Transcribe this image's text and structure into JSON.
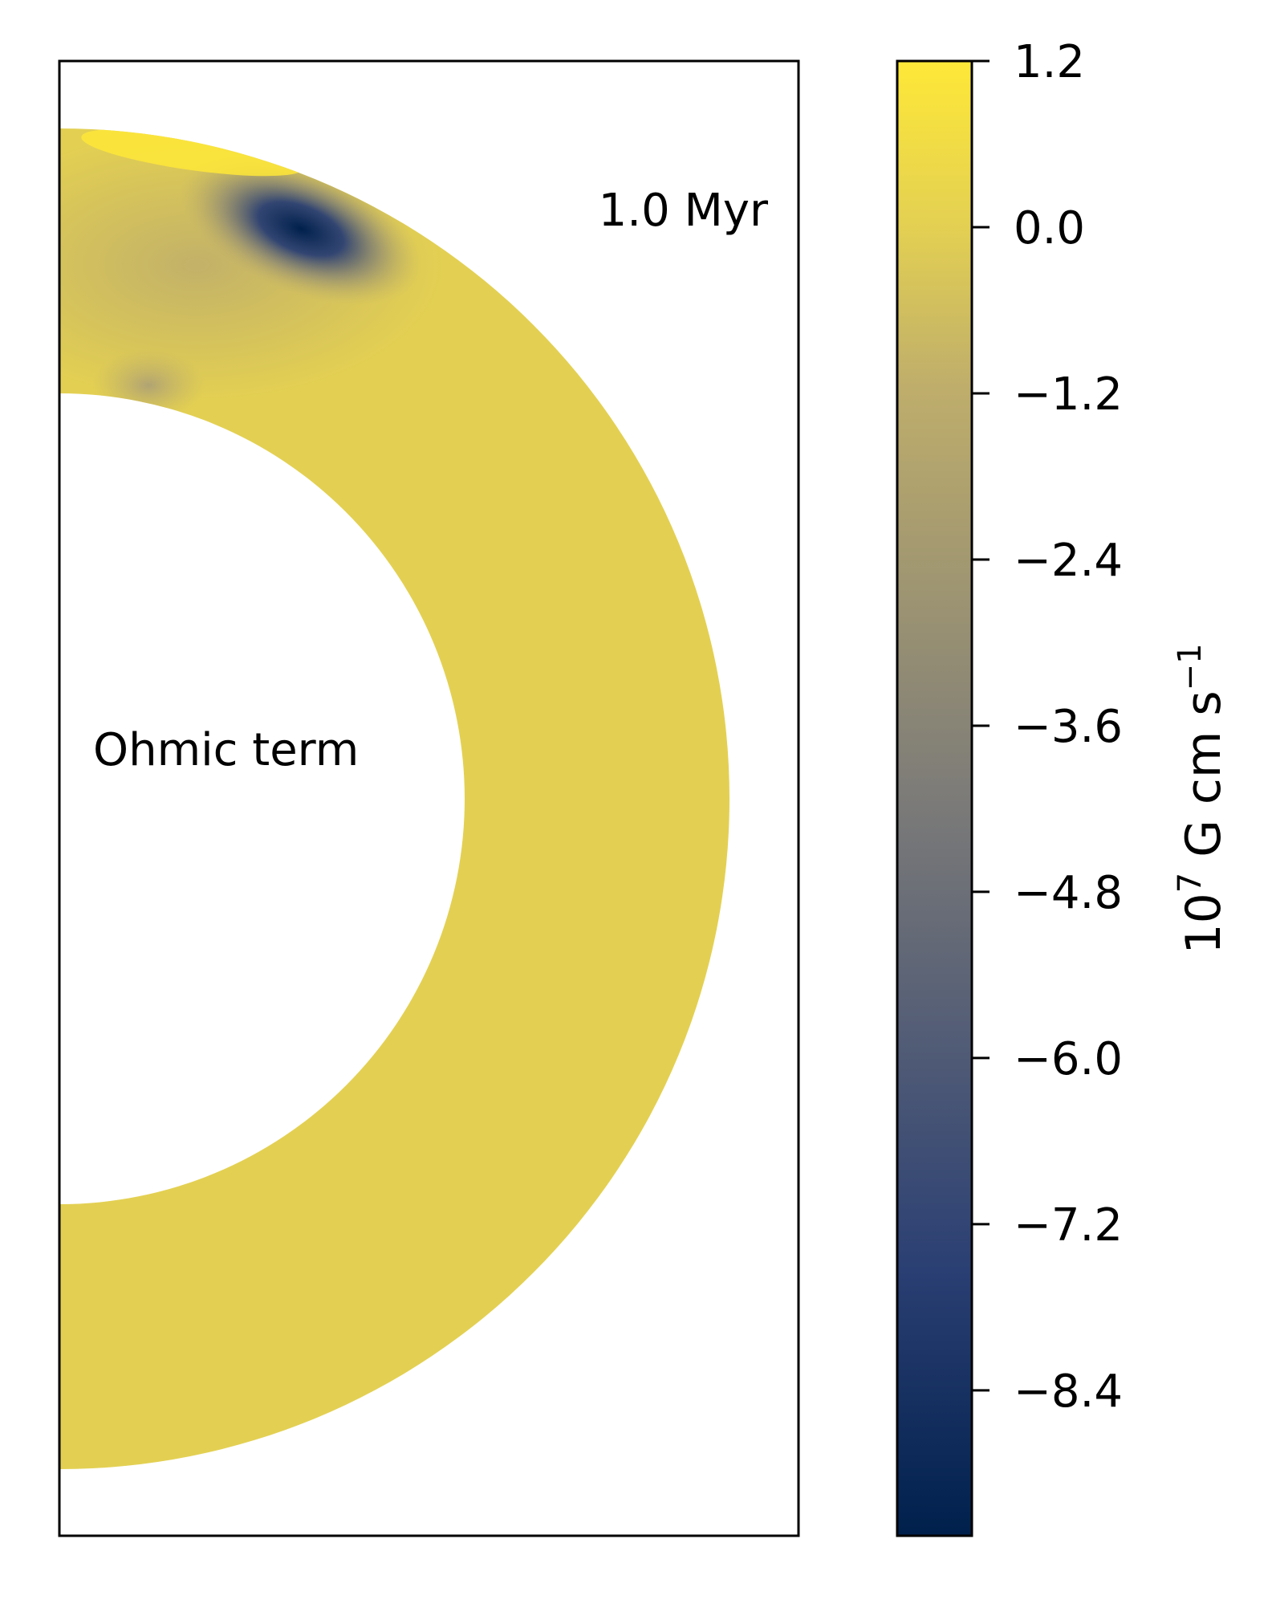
{
  "chart_data": {
    "type": "heatmap",
    "annotations": {
      "time_label": "1.0 Myr",
      "term_label": "Ohmic term"
    },
    "colorbar": {
      "label_base": "10",
      "label_exp": "7",
      "label_unit": " G cm s",
      "label_unit_exp": "−1",
      "range": [
        -9.45,
        1.2
      ],
      "ticks": [
        1.2,
        0.0,
        -1.2,
        -2.4,
        -3.6,
        -4.8,
        -6.0,
        -7.2,
        -8.4
      ],
      "tick_labels": [
        "1.2",
        "0.0",
        "−1.2",
        "−2.4",
        "−3.6",
        "−4.8",
        "−6.0",
        "−7.2",
        "−8.4"
      ],
      "colormap": "cividis",
      "colors": {
        "low": "#00204c",
        "mid_low": "#2a3f73",
        "mid": "#7c7b78",
        "mid_high": "#bfae6b",
        "zero": "#e3d052",
        "high": "#fee838"
      }
    },
    "field": {
      "background_value": 0.0,
      "features": [
        {
          "kind": "minimum",
          "value": -9.4,
          "region": "outer crust near north pole"
        },
        {
          "kind": "maximum",
          "value": 1.2,
          "region": "outer surface near north pole"
        },
        {
          "kind": "weak negative",
          "value": -1.2,
          "region": "inner boundary near north pole"
        }
      ]
    }
  }
}
